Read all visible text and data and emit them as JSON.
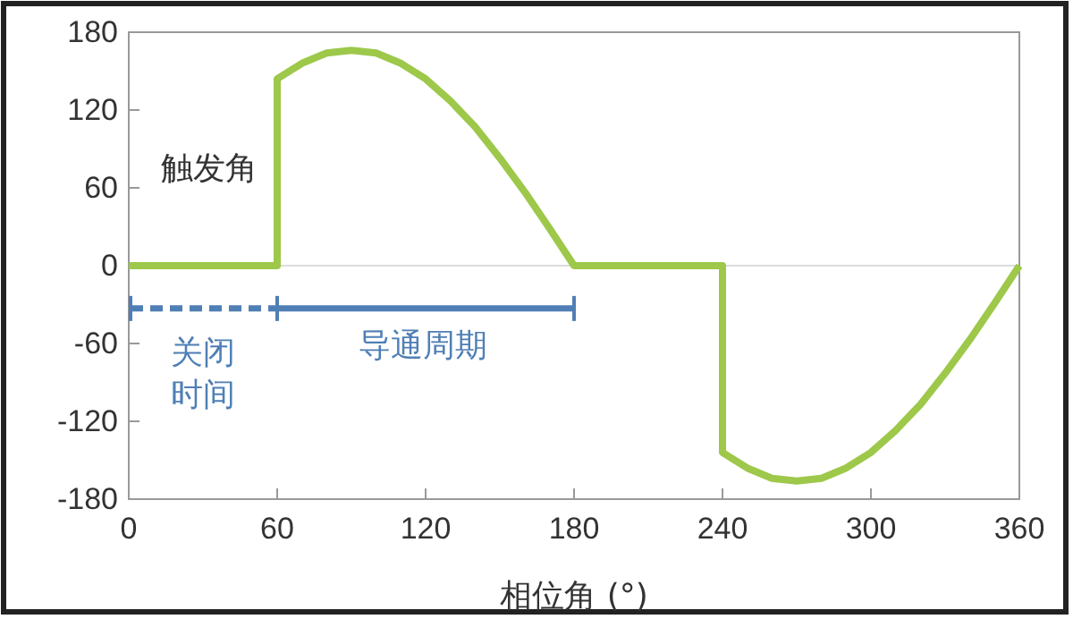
{
  "chart_data": {
    "type": "line",
    "xlabel": "相位角 (°)",
    "x": [
      0,
      60,
      60,
      70,
      80,
      90,
      100,
      110,
      120,
      130,
      140,
      150,
      160,
      170,
      180,
      240,
      240,
      250,
      260,
      270,
      280,
      290,
      300,
      310,
      320,
      330,
      340,
      350,
      360
    ],
    "series": [
      {
        "color": "#9dc84a",
        "values": [
          0,
          0,
          144,
          156,
          164,
          166,
          164,
          156,
          144,
          127,
          107,
          83,
          57,
          29,
          0,
          0,
          -144,
          -156,
          -164,
          -166,
          -164,
          -156,
          -144,
          -127,
          -107,
          -83,
          -57,
          -29,
          0
        ]
      }
    ],
    "xlim": [
      0,
      360
    ],
    "xticks": [
      0,
      60,
      120,
      180,
      240,
      300,
      360
    ],
    "ylim": [
      -180,
      180
    ],
    "yticks": [
      -180,
      -120,
      -60,
      0,
      60,
      120,
      180
    ],
    "grid": false,
    "ref_lines": [
      {
        "axis": "y",
        "value": 0,
        "color": "#dddddd"
      }
    ],
    "annotations": [
      "触发角",
      "关闭时间",
      "导通周期"
    ]
  }
}
